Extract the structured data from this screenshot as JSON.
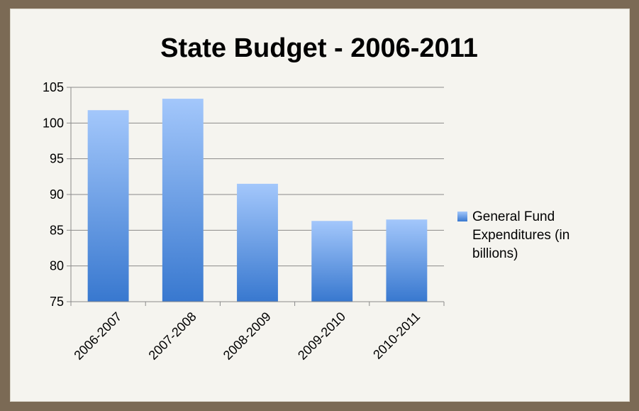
{
  "chart_data": {
    "type": "bar",
    "title": "State Budget - 2006-2011",
    "categories": [
      "2006-2007",
      "2007-2008",
      "2008-2009",
      "2009-2010",
      "2010-2011"
    ],
    "series": [
      {
        "name": "General Fund Expenditures (in billions)",
        "values": [
          101.8,
          103.4,
          91.5,
          86.3,
          86.5
        ],
        "color": "#5b8fd8"
      }
    ],
    "yticks": [
      "75",
      "80",
      "85",
      "90",
      "95",
      "100",
      "105"
    ],
    "ylim": [
      75,
      105
    ],
    "grid": true,
    "legend": "right"
  }
}
